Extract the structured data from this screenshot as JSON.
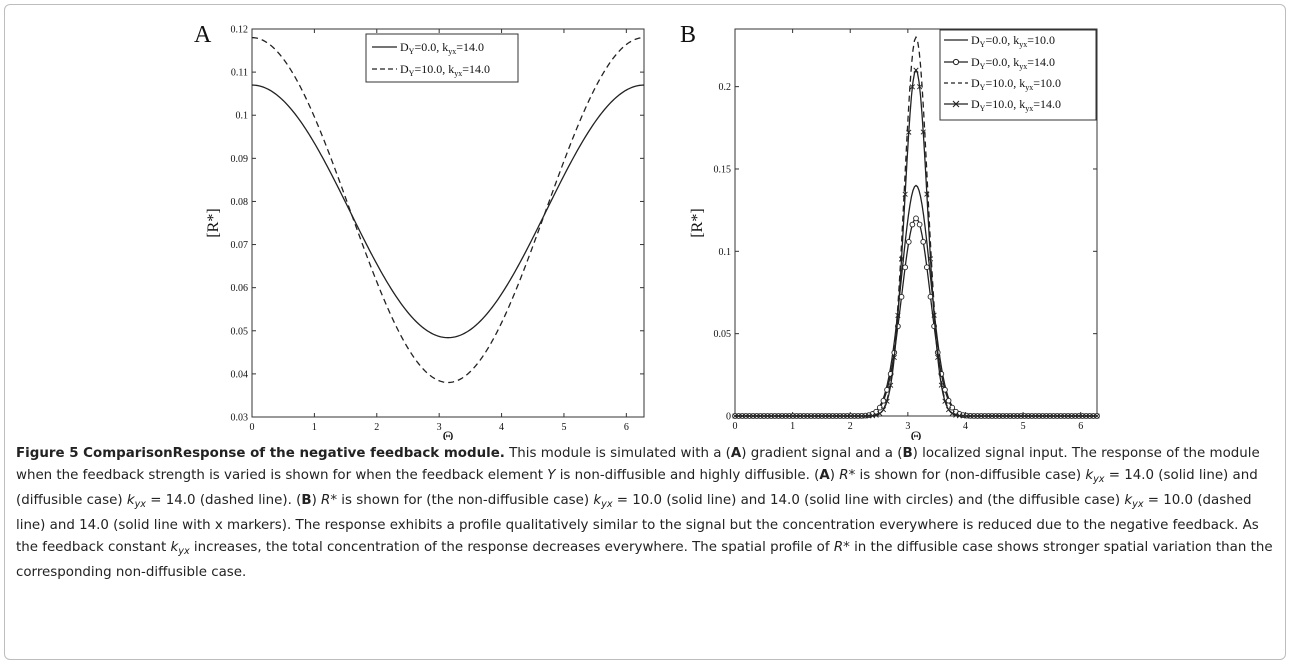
{
  "chart_data": [
    {
      "panel_label": "A",
      "type": "line",
      "xlabel": "Θ",
      "ylabel": "[R*]",
      "xlim": [
        0,
        6.283
      ],
      "ylim": [
        0.03,
        0.12
      ],
      "xticks": [
        0,
        1,
        2,
        3,
        4,
        5,
        6
      ],
      "yticks": [
        0.03,
        0.04,
        0.05,
        0.06,
        0.07,
        0.08,
        0.09,
        0.1,
        0.11,
        0.12
      ],
      "ytick_labels": [
        "0.03",
        "0.04",
        "0.05",
        "0.06",
        "0.07",
        "0.08",
        "0.09",
        "0.1",
        "0.11",
        "0.12"
      ],
      "grid": false,
      "legend_position": "top-right",
      "series": [
        {
          "name_main": "D",
          "name_sub1": "Y",
          "name_mid": "=0.0, k",
          "name_sub2": "yx",
          "name_tail": "=14.0",
          "style": "solid",
          "mean": 0.0777,
          "amplitude": 0.0293
        },
        {
          "name_main": "D",
          "name_sub1": "Y",
          "name_mid": "=10.0, k",
          "name_sub2": "yx",
          "name_tail": "=14.0",
          "style": "dashed",
          "mean": 0.078,
          "amplitude": 0.04
        }
      ]
    },
    {
      "panel_label": "B",
      "type": "line",
      "xlabel": "Θ",
      "ylabel": "[R*]",
      "xlim": [
        0,
        6.283
      ],
      "ylim": [
        0,
        0.235
      ],
      "xticks": [
        0,
        1,
        2,
        3,
        4,
        5,
        6
      ],
      "yticks": [
        0,
        0.05,
        0.1,
        0.15,
        0.2
      ],
      "ytick_labels": [
        "0",
        "0.05",
        "0.1",
        "0.15",
        "0.2"
      ],
      "grid": false,
      "legend_position": "top-right",
      "series": [
        {
          "name_main": "D",
          "name_sub1": "Y",
          "name_mid": "=0.0, k",
          "name_sub2": "yx",
          "name_tail": "=10.0",
          "style": "solid",
          "marker": "none",
          "peak": 0.14,
          "center": 3.1416,
          "width": 0.25
        },
        {
          "name_main": "D",
          "name_sub1": "Y",
          "name_mid": "=0.0, k",
          "name_sub2": "yx",
          "name_tail": "=14.0",
          "style": "solid",
          "marker": "circle",
          "peak": 0.12,
          "center": 3.1416,
          "width": 0.25
        },
        {
          "name_main": "D",
          "name_sub1": "Y",
          "name_mid": "=10.0, k",
          "name_sub2": "yx",
          "name_tail": "=10.0",
          "style": "dashed",
          "marker": "none",
          "peak": 0.23,
          "center": 3.1416,
          "width": 0.2
        },
        {
          "name_main": "D",
          "name_sub1": "Y",
          "name_mid": "=10.0, k",
          "name_sub2": "yx",
          "name_tail": "=14.0",
          "style": "solid",
          "marker": "x",
          "peak": 0.21,
          "center": 3.1416,
          "width": 0.2
        }
      ]
    }
  ],
  "caption": {
    "title": "Figure 5 ComparisonResponse of the negative feedback module.",
    "s1": " This module is simulated with a (",
    "A1": "A",
    "s2": ") gradient signal and a (",
    "B1": "B",
    "s3": ") localized signal input. The response of the module when the feedback strength is varied is shown for when the feedback element ",
    "Y": "Y",
    "s4": " is non-diffusible and highly diffusible. (",
    "A2": "A",
    "s5": ") ",
    "R1": "R",
    "s6": "* is shown for (non-diffusible case) ",
    "k1": "k",
    "k1s": "yx",
    "s7": " = 14.0 (solid line) and (diffusible case) ",
    "k2": "k",
    "k2s": "yx",
    "s8": " = 14.0 (dashed line). (",
    "B2": "B",
    "s9": ") ",
    "R2": "R",
    "s10": "* is shown for (the non-diffusible case) ",
    "k3": "k",
    "k3s": "yx",
    "s11": " = 10.0 (solid line) and 14.0 (solid line with circles) and (the diffusible case) ",
    "k4": "k",
    "k4s": "yx",
    "s12": " = 10.0 (dashed line) and 14.0 (solid line with x markers). The response exhibits a profile qualitatively similar to the signal but the concentration everywhere is reduced due to the negative feedback. As the feedback constant ",
    "k5": "k",
    "k5s": "yx",
    "s13": " increases, the total concentration of the response decreases everywhere. The spatial profile of ",
    "R3": "R",
    "s14": "* in the diffusible case shows stronger spatial variation than the corresponding non-diffusible case."
  }
}
